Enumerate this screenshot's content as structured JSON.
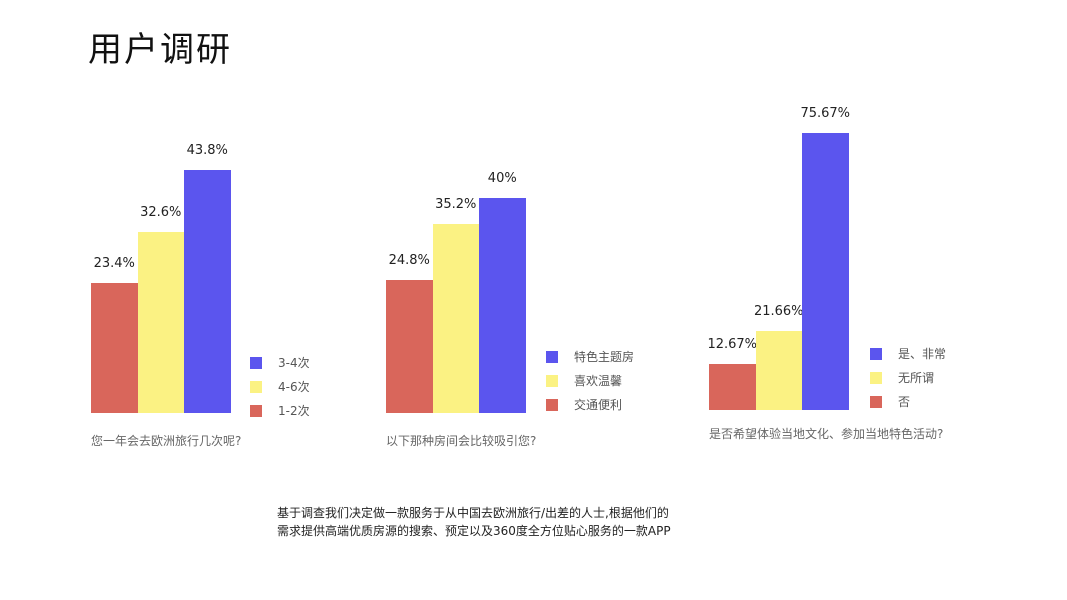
{
  "title": "用户调研",
  "colors": {
    "red": "#d9665b",
    "yellow": "#fbf283",
    "blue": "#5b55ee"
  },
  "chart_data": [
    {
      "type": "bar",
      "question": "您一年会去欧洲旅行几次呢?",
      "categories": [
        "1-2次",
        "4-6次",
        "3-4次"
      ],
      "values": [
        23.4,
        32.6,
        43.8
      ],
      "value_labels": [
        "23.4%",
        "32.6%",
        "43.8%"
      ],
      "legend": [
        "3-4次",
        "4-6次",
        "1-2次"
      ]
    },
    {
      "type": "bar",
      "question": "以下那种房间会比较吸引您?",
      "categories": [
        "交通便利",
        "喜欢温馨",
        "特色主题房"
      ],
      "values": [
        24.8,
        35.2,
        40
      ],
      "value_labels": [
        "24.8%",
        "35.2%",
        "40%"
      ],
      "legend": [
        "特色主题房",
        "喜欢温馨",
        "交通便利"
      ]
    },
    {
      "type": "bar",
      "question": "是否希望体验当地文化、参加当地特色活动?",
      "categories": [
        "否",
        "无所谓",
        "是、非常"
      ],
      "values": [
        12.67,
        21.66,
        75.67
      ],
      "value_labels": [
        "12.67%",
        "21.66%",
        "75.67%"
      ],
      "legend": [
        "是、非常",
        "无所谓",
        "否"
      ]
    }
  ],
  "summary": {
    "line1": "基于调查我们决定做一款服务于从中国去欧洲旅行/出差的人士,根据他们的",
    "line2": "需求提供高端优质房源的搜索、预定以及360度全方位贴心服务的一款APP"
  }
}
